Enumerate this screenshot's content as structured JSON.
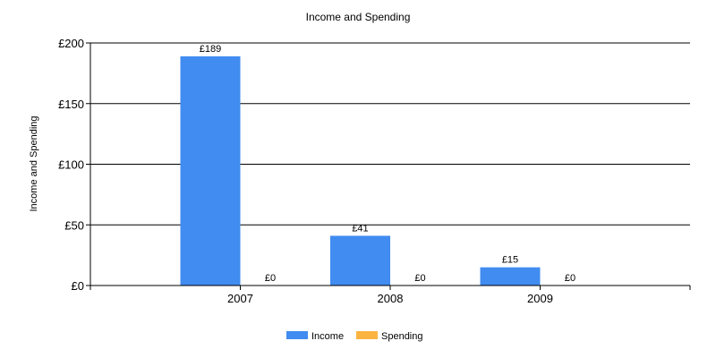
{
  "chart_data": {
    "type": "bar",
    "title": "Income and Spending",
    "ylabel": "Income and Spending",
    "xlabel": "",
    "categories": [
      "2007",
      "2008",
      "2009"
    ],
    "series": [
      {
        "name": "Income",
        "values": [
          189,
          41,
          15
        ],
        "labels": [
          "£189",
          "£41",
          "£15"
        ],
        "color": "#418cf0"
      },
      {
        "name": "Spending",
        "values": [
          0,
          0,
          0
        ],
        "labels": [
          "£0",
          "£0",
          "£0"
        ],
        "color": "#fcb441"
      }
    ],
    "ylim": [
      0,
      200
    ],
    "yticks": [
      0,
      50,
      100,
      150,
      200
    ],
    "ytick_labels": [
      "£0",
      "£50",
      "£100",
      "£150",
      "£200"
    ],
    "grid": true,
    "legend_position": "bottom-center"
  }
}
